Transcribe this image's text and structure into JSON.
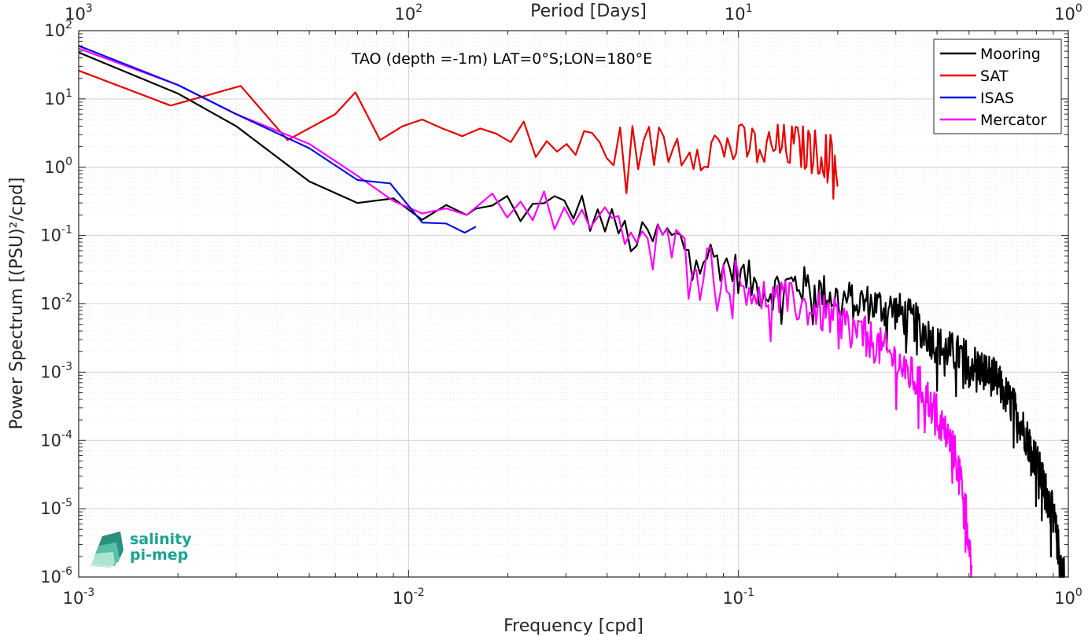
{
  "chart_data": {
    "type": "line",
    "title": "TAO (depth =-1m) LAT=0°S;LON=180°E",
    "xlabel": "Frequency [cpd]",
    "ylabel": "Power Spectrum [(PSU)²/cpd]",
    "top_xlabel": "Period [Days]",
    "x_scale": "log",
    "y_scale": "log",
    "xlim": [
      0.001,
      1
    ],
    "ylim": [
      1e-06,
      100
    ],
    "grid": true,
    "legend_placement": "top-right",
    "x_ticks": [
      {
        "base": "10",
        "exp": "-3"
      },
      {
        "base": "10",
        "exp": "-2"
      },
      {
        "base": "10",
        "exp": "-1"
      },
      {
        "base": "10",
        "exp": "0"
      }
    ],
    "top_ticks": [
      {
        "base": "10",
        "exp": "3"
      },
      {
        "base": "10",
        "exp": "2"
      },
      {
        "base": "10",
        "exp": "1"
      },
      {
        "base": "10",
        "exp": "0"
      }
    ],
    "y_ticks": [
      {
        "base": "10",
        "exp": "2"
      },
      {
        "base": "10",
        "exp": "1"
      },
      {
        "base": "10",
        "exp": "0"
      },
      {
        "base": "10",
        "exp": "-1"
      },
      {
        "base": "10",
        "exp": "-2"
      },
      {
        "base": "10",
        "exp": "-3"
      },
      {
        "base": "10",
        "exp": "-4"
      },
      {
        "base": "10",
        "exp": "-5"
      },
      {
        "base": "10",
        "exp": "-6"
      }
    ],
    "series": [
      {
        "name": "Mooring",
        "color": "#000000",
        "anchors": [
          [
            0.001,
            48
          ],
          [
            0.002,
            12
          ],
          [
            0.003,
            4
          ],
          [
            0.005,
            0.62
          ],
          [
            0.007,
            0.3
          ],
          [
            0.009,
            0.35
          ],
          [
            0.011,
            0.17
          ],
          [
            0.013,
            0.28
          ],
          [
            0.015,
            0.2
          ],
          [
            0.017,
            0.2
          ],
          [
            0.02,
            0.3
          ],
          [
            0.025,
            0.2
          ],
          [
            0.03,
            0.3
          ],
          [
            0.04,
            0.15
          ],
          [
            0.05,
            0.08
          ],
          [
            0.06,
            0.1
          ],
          [
            0.07,
            0.07
          ],
          [
            0.09,
            0.04
          ],
          [
            0.12,
            0.015
          ],
          [
            0.15,
            0.02
          ],
          [
            0.2,
            0.012
          ],
          [
            0.25,
            0.01
          ],
          [
            0.3,
            0.008
          ],
          [
            0.35,
            0.005
          ],
          [
            0.4,
            0.0025
          ],
          [
            0.5,
            0.0015
          ],
          [
            0.6,
            0.0008
          ],
          [
            0.7,
            0.00025
          ],
          [
            0.8,
            5e-05
          ],
          [
            0.9,
            8e-06
          ],
          [
            0.95,
            1.5e-06
          ],
          [
            0.975,
            1e-06
          ]
        ],
        "noise": 0.3,
        "x_start": 0.016,
        "x_end": 0.975,
        "step": 0.00195
      },
      {
        "name": "SAT",
        "color": "#e60000",
        "anchors": [
          [
            0.001,
            26
          ],
          [
            0.0019,
            8
          ],
          [
            0.0031,
            15.5
          ],
          [
            0.0043,
            2.5
          ],
          [
            0.006,
            6
          ],
          [
            0.0069,
            12.5
          ],
          [
            0.0082,
            2.5
          ],
          [
            0.0096,
            4
          ],
          [
            0.011,
            5
          ],
          [
            0.013,
            2.5
          ],
          [
            0.016,
            3
          ],
          [
            0.02,
            2.5
          ],
          [
            0.03,
            2
          ],
          [
            0.05,
            2
          ],
          [
            0.1,
            2
          ],
          [
            0.15,
            2
          ],
          [
            0.196,
            1.4
          ],
          [
            0.2,
            0.85
          ]
        ],
        "noise": 0.35,
        "x_start": 0.0126,
        "x_end": 0.2,
        "step": 0.00195
      },
      {
        "name": "ISAS",
        "color": "#0010e6",
        "anchors": [
          [
            0.001,
            60
          ],
          [
            0.002,
            16
          ],
          [
            0.003,
            6
          ],
          [
            0.005,
            1.9
          ],
          [
            0.007,
            0.65
          ],
          [
            0.0088,
            0.58
          ],
          [
            0.011,
            0.155
          ],
          [
            0.013,
            0.15
          ],
          [
            0.0148,
            0.11
          ],
          [
            0.016,
            0.135
          ]
        ],
        "noise": 0,
        "x_start": 0.02,
        "x_end": 0.016,
        "step": 0.002
      },
      {
        "name": "Mercator",
        "color": "#ff00ff",
        "anchors": [
          [
            0.001,
            55
          ],
          [
            0.002,
            16
          ],
          [
            0.003,
            6
          ],
          [
            0.005,
            2.2
          ],
          [
            0.007,
            0.75
          ],
          [
            0.009,
            0.32
          ],
          [
            0.011,
            0.21
          ],
          [
            0.013,
            0.25
          ],
          [
            0.015,
            0.2
          ],
          [
            0.017,
            0.33
          ],
          [
            0.02,
            0.3
          ],
          [
            0.025,
            0.3
          ],
          [
            0.03,
            0.25
          ],
          [
            0.04,
            0.14
          ],
          [
            0.05,
            0.1
          ],
          [
            0.06,
            0.08
          ],
          [
            0.07,
            0.06
          ],
          [
            0.09,
            0.03
          ],
          [
            0.12,
            0.013
          ],
          [
            0.15,
            0.01
          ],
          [
            0.2,
            0.006
          ],
          [
            0.25,
            0.003
          ],
          [
            0.3,
            0.0015
          ],
          [
            0.35,
            0.0007
          ],
          [
            0.4,
            0.00025
          ],
          [
            0.45,
            7e-05
          ],
          [
            0.48,
            2e-05
          ],
          [
            0.5,
            4e-06
          ],
          [
            0.51,
            1e-06
          ]
        ],
        "noise": 0.3,
        "x_start": 0.016,
        "x_end": 0.51,
        "step": 0.00195
      }
    ]
  },
  "logo": {
    "line1": "salinity",
    "line2": "pi-mep"
  }
}
